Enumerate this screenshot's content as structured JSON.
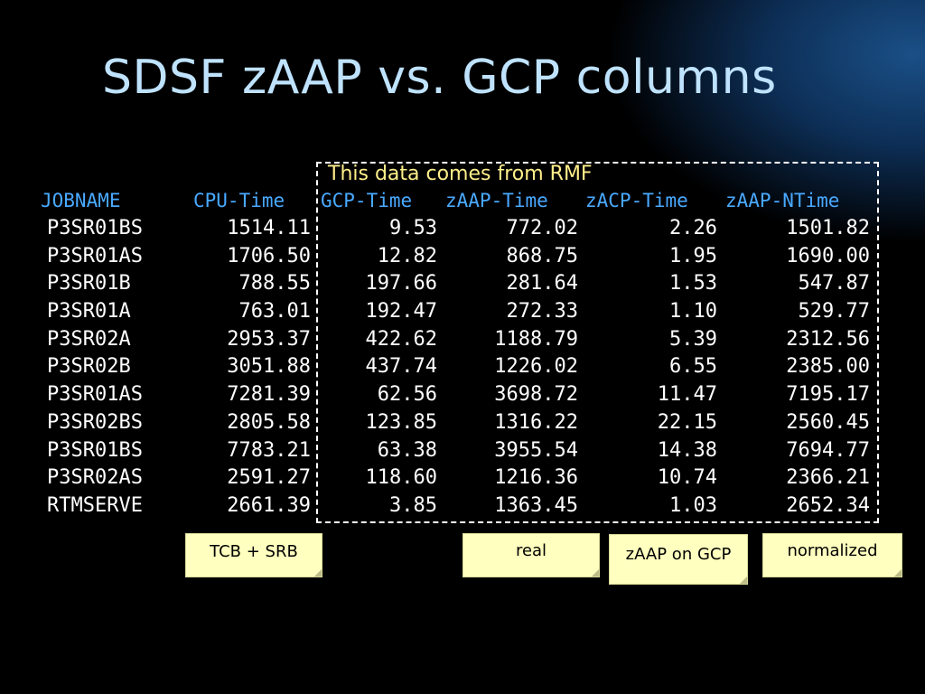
{
  "title": "SDSF zAAP vs. GCP columns",
  "rmf_label": "This data comes from RMF",
  "headers": [
    "JOBNAME",
    "CPU-Time",
    "GCP-Time",
    "zAAP-Time",
    "zACP-Time",
    "zAAP-NTime"
  ],
  "rows": [
    [
      "P3SR01BS",
      "1514.11",
      "9.53",
      "772.02",
      "2.26",
      "1501.82"
    ],
    [
      "P3SR01AS",
      "1706.50",
      "12.82",
      "868.75",
      "1.95",
      "1690.00"
    ],
    [
      "P3SR01B",
      "788.55",
      "197.66",
      "281.64",
      "1.53",
      "547.87"
    ],
    [
      "P3SR01A",
      "763.01",
      "192.47",
      "272.33",
      "1.10",
      "529.77"
    ],
    [
      "P3SR02A",
      "2953.37",
      "422.62",
      "1188.79",
      "5.39",
      "2312.56"
    ],
    [
      "P3SR02B",
      "3051.88",
      "437.74",
      "1226.02",
      "6.55",
      "2385.00"
    ],
    [
      "P3SR01AS",
      "7281.39",
      "62.56",
      "3698.72",
      "11.47",
      "7195.17"
    ],
    [
      "P3SR02BS",
      "2805.58",
      "123.85",
      "1316.22",
      "22.15",
      "2560.45"
    ],
    [
      "P3SR01BS",
      "7783.21",
      "63.38",
      "3955.54",
      "14.38",
      "7694.77"
    ],
    [
      "P3SR02AS",
      "2591.27",
      "118.60",
      "1216.36",
      "10.74",
      "2366.21"
    ],
    [
      "RTMSERVE",
      "2661.39",
      "3.85",
      "1363.45",
      "1.03",
      "2652.34"
    ]
  ],
  "notes": {
    "tcb_srb": "TCB + SRB",
    "real": "real",
    "zaap_on_gcp": "zAAP on GCP",
    "normalized": "normalized"
  },
  "colors": {
    "background": "#000000",
    "title": "#bfe3ff",
    "header": "#49a9ff",
    "rmf_label": "#ffef8a",
    "note_bg": "#ffffbf",
    "table_text": "#ffffff"
  }
}
